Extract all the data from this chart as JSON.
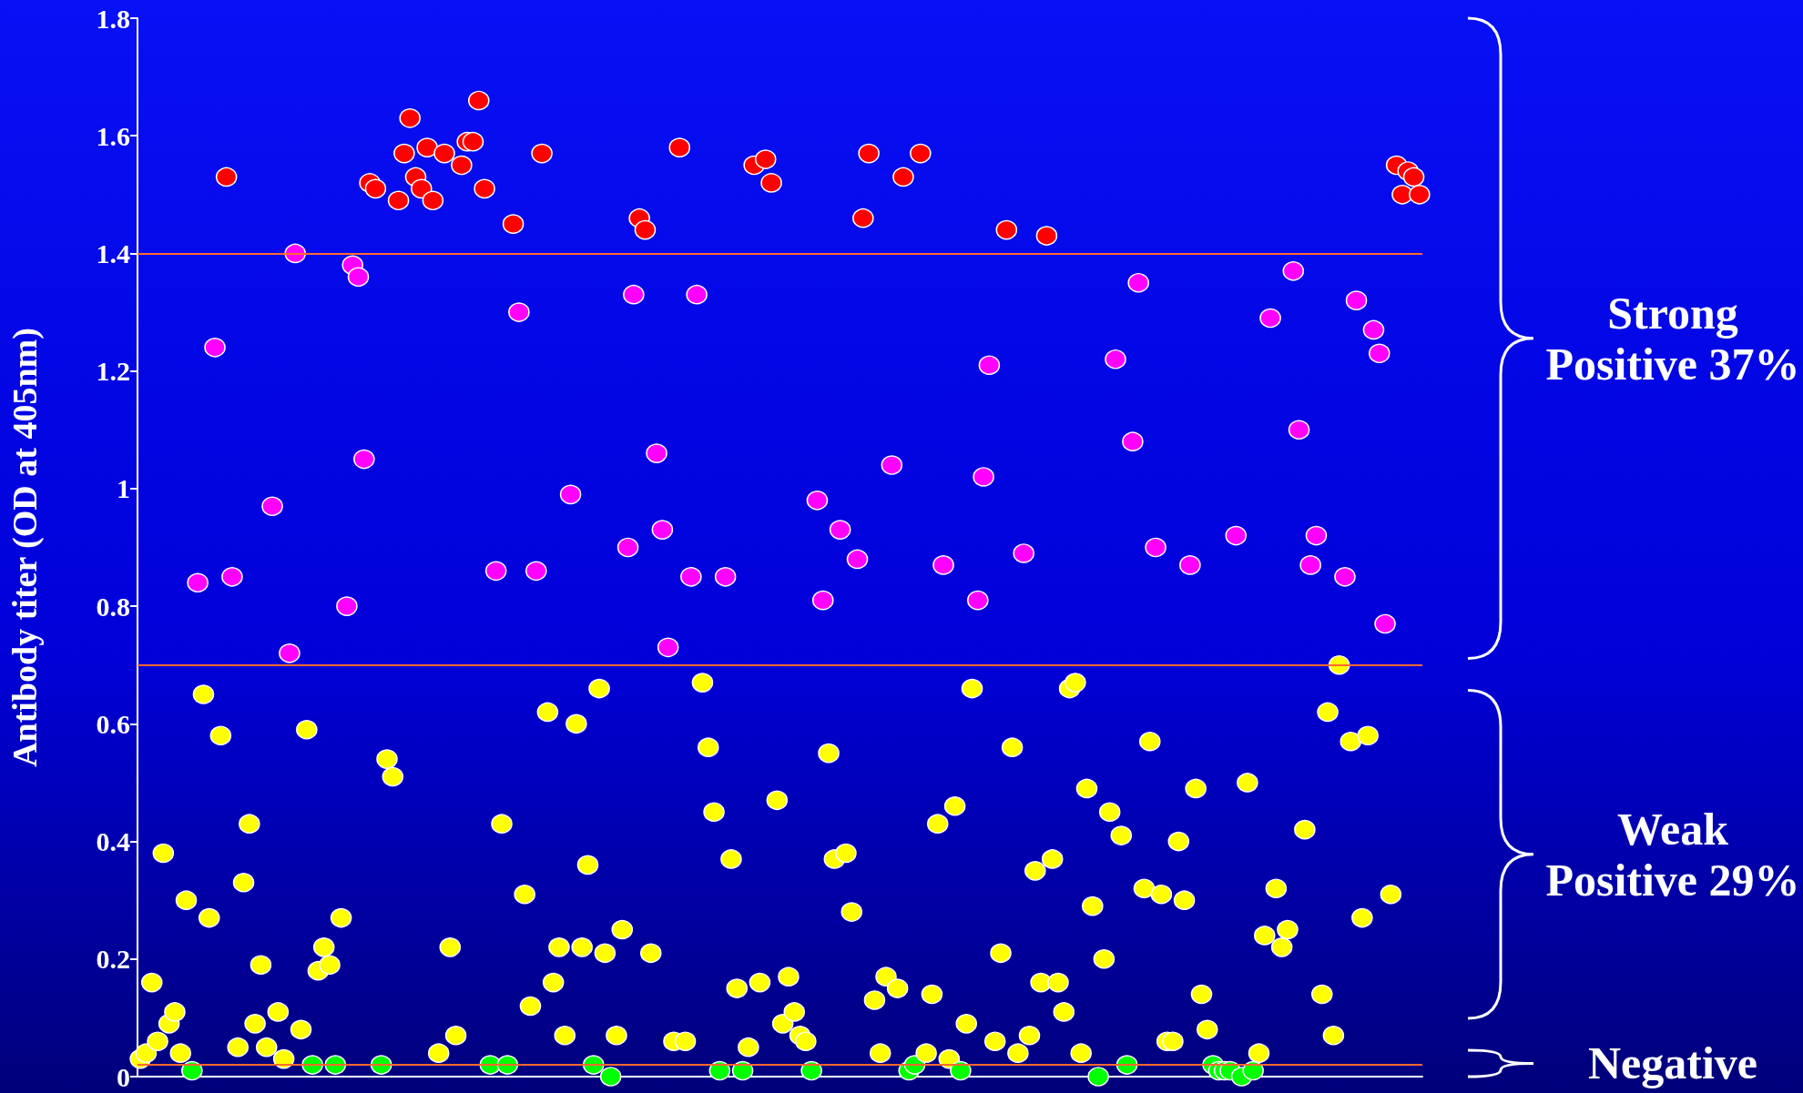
{
  "chart_data": {
    "type": "scatter",
    "ylabel": "Antibody titer (OD at 405nm)",
    "ylim": [
      0,
      1.8
    ],
    "yticks": [
      0,
      0.2,
      0.4,
      0.6,
      0.8,
      1,
      1.2,
      1.4,
      1.6,
      1.8
    ],
    "tick_labels": "y",
    "grid": false,
    "marker": "circle",
    "annotations": [
      "Strong Positive 37%",
      "Weak Positive 29%",
      "Negative"
    ],
    "ref_lines": [
      {
        "axis": "y",
        "value": 1.4,
        "color": "#ff6a30"
      },
      {
        "axis": "y",
        "value": 0.7,
        "color": "#ff6a30"
      },
      {
        "axis": "y",
        "value": 0.02,
        "color": "#ff6a30"
      }
    ],
    "categories": [
      null,
      null,
      null,
      null,
      null,
      null,
      null,
      null,
      null,
      null,
      null,
      null,
      null,
      null,
      null,
      null,
      null,
      null,
      null,
      null,
      null,
      null,
      null,
      null,
      null,
      null,
      null,
      null,
      null,
      null,
      null,
      null,
      null,
      null,
      null,
      null,
      null,
      null,
      null,
      null,
      null,
      null,
      null,
      null,
      null,
      null,
      null,
      null,
      null,
      null,
      null,
      null,
      null,
      null,
      null,
      null,
      null,
      null,
      null,
      null,
      null,
      null,
      null,
      null,
      null,
      null,
      null,
      null,
      null,
      null,
      null,
      null,
      null,
      null,
      null,
      null,
      null,
      null,
      null,
      null,
      null,
      null,
      null,
      null,
      null,
      null,
      null,
      null,
      null,
      null,
      null,
      null,
      null,
      null,
      null,
      null,
      null,
      null,
      null,
      null,
      null,
      null,
      null,
      null,
      null,
      null,
      null,
      null,
      null,
      null,
      null,
      null,
      null,
      null,
      null,
      null,
      null,
      null,
      null,
      null,
      null,
      null,
      null,
      null,
      null,
      null,
      null,
      null,
      null,
      null,
      null,
      null,
      null,
      null,
      null,
      null,
      null,
      null,
      null,
      null,
      null,
      null,
      null,
      null,
      null,
      null,
      null,
      null,
      null,
      null,
      null,
      null,
      null,
      null,
      null,
      null,
      null,
      null,
      null,
      null,
      null,
      null,
      null,
      null,
      null,
      null,
      null,
      null,
      null,
      null,
      null,
      null,
      null,
      null,
      null,
      null,
      null,
      null,
      null,
      null,
      null,
      null,
      null,
      null,
      null,
      null,
      null,
      null,
      null,
      null,
      null,
      null,
      null,
      null,
      null,
      null,
      null,
      null,
      null,
      null,
      null,
      null,
      null,
      null,
      null,
      null,
      null,
      null,
      null,
      null,
      null,
      null,
      null,
      null,
      null,
      null,
      null,
      null,
      null,
      null,
      null,
      null,
      null,
      null
    ],
    "values": [
      0.03,
      0.04,
      0.16,
      0.06,
      0.38,
      0.09,
      0.11,
      0.04,
      0.3,
      0.01,
      0.84,
      0.65,
      0.27,
      1.24,
      0.58,
      1.53,
      0.85,
      0.05,
      0.33,
      0.43,
      0.09,
      0.19,
      0.05,
      0.97,
      0.11,
      0.03,
      0.72,
      1.4,
      0.08,
      0.59,
      0.02,
      0.18,
      0.22,
      0.19,
      0.02,
      0.27,
      0.8,
      1.38,
      1.36,
      1.05,
      1.52,
      1.51,
      0.02,
      0.54,
      0.51,
      1.49,
      1.57,
      1.63,
      1.53,
      1.51,
      1.58,
      1.49,
      0.04,
      1.57,
      0.22,
      0.07,
      1.55,
      1.59,
      1.59,
      1.66,
      1.51,
      0.02,
      0.86,
      0.43,
      0.02,
      1.45,
      1.3,
      0.31,
      0.12,
      0.86,
      1.57,
      0.62,
      0.16,
      0.22,
      0.07,
      0.99,
      0.6,
      0.22,
      0.36,
      0.02,
      0.66,
      0.21,
      0.0,
      0.07,
      0.25,
      0.9,
      1.33,
      1.46,
      1.44,
      0.21,
      1.06,
      0.93,
      0.73,
      0.06,
      1.58,
      0.06,
      0.85,
      1.33,
      0.67,
      0.56,
      0.45,
      0.01,
      0.85,
      0.37,
      0.15,
      0.01,
      0.05,
      1.55,
      0.16,
      1.56,
      1.52,
      0.47,
      0.09,
      0.17,
      0.11,
      0.07,
      0.06,
      0.01,
      0.98,
      0.81,
      0.55,
      0.37,
      0.93,
      0.38,
      0.28,
      0.88,
      1.46,
      1.57,
      0.13,
      0.04,
      0.17,
      1.04,
      0.15,
      1.53,
      0.01,
      0.02,
      1.57,
      0.04,
      0.14,
      0.43,
      0.87,
      0.03,
      0.46,
      0.01,
      0.09,
      0.66,
      0.81,
      1.02,
      1.21,
      0.06,
      0.21,
      1.44,
      0.56,
      0.04,
      0.89,
      0.07,
      0.35,
      0.16,
      1.43,
      0.37,
      0.16,
      0.11,
      0.66,
      0.67,
      0.04,
      0.49,
      0.29,
      0.0,
      0.2,
      0.45,
      1.22,
      0.41,
      0.02,
      1.08,
      1.35,
      0.32,
      0.57,
      0.9,
      0.31,
      0.06,
      0.06,
      0.4,
      0.3,
      0.87,
      0.49,
      0.14,
      0.08,
      0.02,
      0.01,
      0.01,
      0.01,
      0.92,
      0.0,
      0.5,
      0.01,
      0.04,
      0.24,
      1.29,
      0.32,
      0.22,
      0.25,
      1.37,
      1.1,
      0.42,
      0.87,
      0.92,
      0.14,
      0.62,
      0.07,
      0.7,
      0.85,
      0.57,
      1.32,
      0.27,
      0.58,
      1.27,
      1.23,
      0.77,
      0.31,
      1.55,
      1.5,
      1.54,
      1.53,
      1.5
    ],
    "colors": [
      "#ffff00",
      "#ffff00",
      "#ffff00",
      "#ffff00",
      "#ffff00",
      "#ffff00",
      "#ffff00",
      "#ffff00",
      "#ffff00",
      "#00ff00",
      "#ff00ff",
      "#ffff00",
      "#ffff00",
      "#ff00ff",
      "#ffff00",
      "#ff0000",
      "#ff00ff",
      "#ffff00",
      "#ffff00",
      "#ffff00",
      "#ffff00",
      "#ffff00",
      "#ffff00",
      "#ff00ff",
      "#ffff00",
      "#ffff00",
      "#ff00ff",
      "#ff00ff",
      "#ffff00",
      "#ffff00",
      "#00ff00",
      "#ffff00",
      "#ffff00",
      "#ffff00",
      "#00ff00",
      "#ffff00",
      "#ff00ff",
      "#ff00ff",
      "#ff00ff",
      "#ff00ff",
      "#ff0000",
      "#ff0000",
      "#00ff00",
      "#ffff00",
      "#ffff00",
      "#ff0000",
      "#ff0000",
      "#ff0000",
      "#ff0000",
      "#ff0000",
      "#ff0000",
      "#ff0000",
      "#ffff00",
      "#ff0000",
      "#ffff00",
      "#ffff00",
      "#ff0000",
      "#ff0000",
      "#ff0000",
      "#ff0000",
      "#ff0000",
      "#00ff00",
      "#ff00ff",
      "#ffff00",
      "#00ff00",
      "#ff0000",
      "#ff00ff",
      "#ffff00",
      "#ffff00",
      "#ff00ff",
      "#ff0000",
      "#ffff00",
      "#ffff00",
      "#ffff00",
      "#ffff00",
      "#ff00ff",
      "#ffff00",
      "#ffff00",
      "#ffff00",
      "#00ff00",
      "#ffff00",
      "#ffff00",
      "#00ff00",
      "#ffff00",
      "#ffff00",
      "#ff00ff",
      "#ff00ff",
      "#ff0000",
      "#ff0000",
      "#ffff00",
      "#ff00ff",
      "#ff00ff",
      "#ff00ff",
      "#ffff00",
      "#ff0000",
      "#ffff00",
      "#ff00ff",
      "#ff00ff",
      "#ffff00",
      "#ffff00",
      "#ffff00",
      "#00ff00",
      "#ff00ff",
      "#ffff00",
      "#ffff00",
      "#00ff00",
      "#ffff00",
      "#ff0000",
      "#ffff00",
      "#ff0000",
      "#ff0000",
      "#ffff00",
      "#ffff00",
      "#ffff00",
      "#ffff00",
      "#ffff00",
      "#ffff00",
      "#00ff00",
      "#ff00ff",
      "#ff00ff",
      "#ffff00",
      "#ffff00",
      "#ff00ff",
      "#ffff00",
      "#ffff00",
      "#ff00ff",
      "#ff0000",
      "#ff0000",
      "#ffff00",
      "#ffff00",
      "#ffff00",
      "#ff00ff",
      "#ffff00",
      "#ff0000",
      "#00ff00",
      "#00ff00",
      "#ff0000",
      "#ffff00",
      "#ffff00",
      "#ffff00",
      "#ff00ff",
      "#ffff00",
      "#ffff00",
      "#00ff00",
      "#ffff00",
      "#ffff00",
      "#ff00ff",
      "#ff00ff",
      "#ff00ff",
      "#ffff00",
      "#ffff00",
      "#ff0000",
      "#ffff00",
      "#ffff00",
      "#ff00ff",
      "#ffff00",
      "#ffff00",
      "#ffff00",
      "#ff0000",
      "#ffff00",
      "#ffff00",
      "#ffff00",
      "#ffff00",
      "#ffff00",
      "#ffff00",
      "#ffff00",
      "#ffff00",
      "#00ff00",
      "#ffff00",
      "#ffff00",
      "#ff00ff",
      "#ffff00",
      "#00ff00",
      "#ff00ff",
      "#ff00ff",
      "#ffff00",
      "#ffff00",
      "#ff00ff",
      "#ffff00",
      "#ffff00",
      "#ffff00",
      "#ffff00",
      "#ffff00",
      "#ff00ff",
      "#ffff00",
      "#ffff00",
      "#ffff00",
      "#00ff00",
      "#00ff00",
      "#00ff00",
      "#00ff00",
      "#ff00ff",
      "#00ff00",
      "#ffff00",
      "#00ff00",
      "#ffff00",
      "#ffff00",
      "#ff00ff",
      "#ffff00",
      "#ffff00",
      "#ffff00",
      "#ff00ff",
      "#ff00ff",
      "#ffff00",
      "#ff00ff",
      "#ff00ff",
      "#ffff00",
      "#ffff00",
      "#ffff00",
      "#ffff00",
      "#ff00ff",
      "#ffff00",
      "#ff00ff",
      "#ffff00",
      "#ffff00",
      "#ff00ff",
      "#ff00ff",
      "#ff00ff",
      "#ffff00",
      "#ff0000",
      "#ff0000",
      "#ff0000",
      "#ff0000",
      "#ff0000"
    ]
  }
}
